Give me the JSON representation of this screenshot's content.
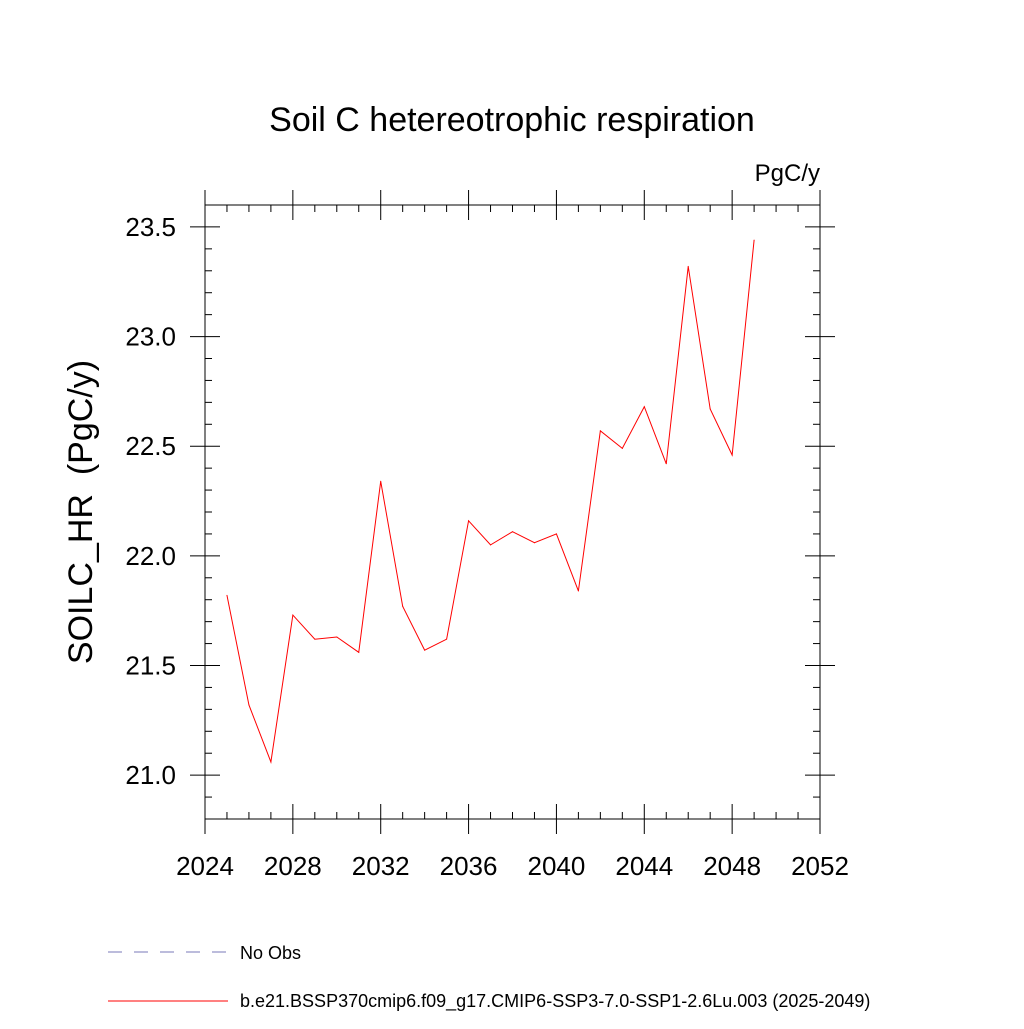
{
  "chart_data": {
    "type": "line",
    "title": "Soil C hetereotrophic respiration",
    "units_label": "PgC/y",
    "xlabel": "",
    "ylabel": "SOILC_HR  (PgC/y)",
    "xlim": [
      2024,
      2052
    ],
    "ylim": [
      20.8,
      23.6
    ],
    "x_major_ticks": [
      2024,
      2028,
      2032,
      2036,
      2040,
      2044,
      2048,
      2052
    ],
    "x_minor_step": 1,
    "y_major_ticks": [
      21.0,
      21.5,
      22.0,
      22.5,
      23.0,
      23.5
    ],
    "y_tick_labels": [
      "21.0",
      "21.5",
      "22.0",
      "22.5",
      "23.0",
      "23.5"
    ],
    "y_minor_step": 0.1,
    "grid": false,
    "series": [
      {
        "name": "b.e21.BSSP370cmip6.f09_g17.CMIP6-SSP3-7.0-SSP1-2.6Lu.003 (2025-2049)",
        "color": "#ff0000",
        "x": [
          2025,
          2026,
          2027,
          2028,
          2029,
          2030,
          2031,
          2032,
          2033,
          2034,
          2035,
          2036,
          2037,
          2038,
          2039,
          2040,
          2041,
          2042,
          2043,
          2044,
          2045,
          2046,
          2047,
          2048,
          2049
        ],
        "values": [
          21.82,
          21.32,
          21.06,
          21.73,
          21.62,
          21.63,
          21.56,
          22.34,
          21.77,
          21.57,
          21.62,
          22.16,
          22.05,
          22.11,
          22.06,
          22.1,
          21.84,
          22.57,
          22.49,
          22.68,
          22.42,
          23.32,
          22.67,
          22.46,
          23.44
        ]
      }
    ],
    "legend": [
      {
        "label": "No Obs",
        "style": "dashed",
        "color": "#7a7ab8"
      },
      {
        "label": "b.e21.BSSP370cmip6.f09_g17.CMIP6-SSP3-7.0-SSP1-2.6Lu.003 (2025-2049)",
        "style": "solid",
        "color": "#ff0000"
      }
    ]
  }
}
